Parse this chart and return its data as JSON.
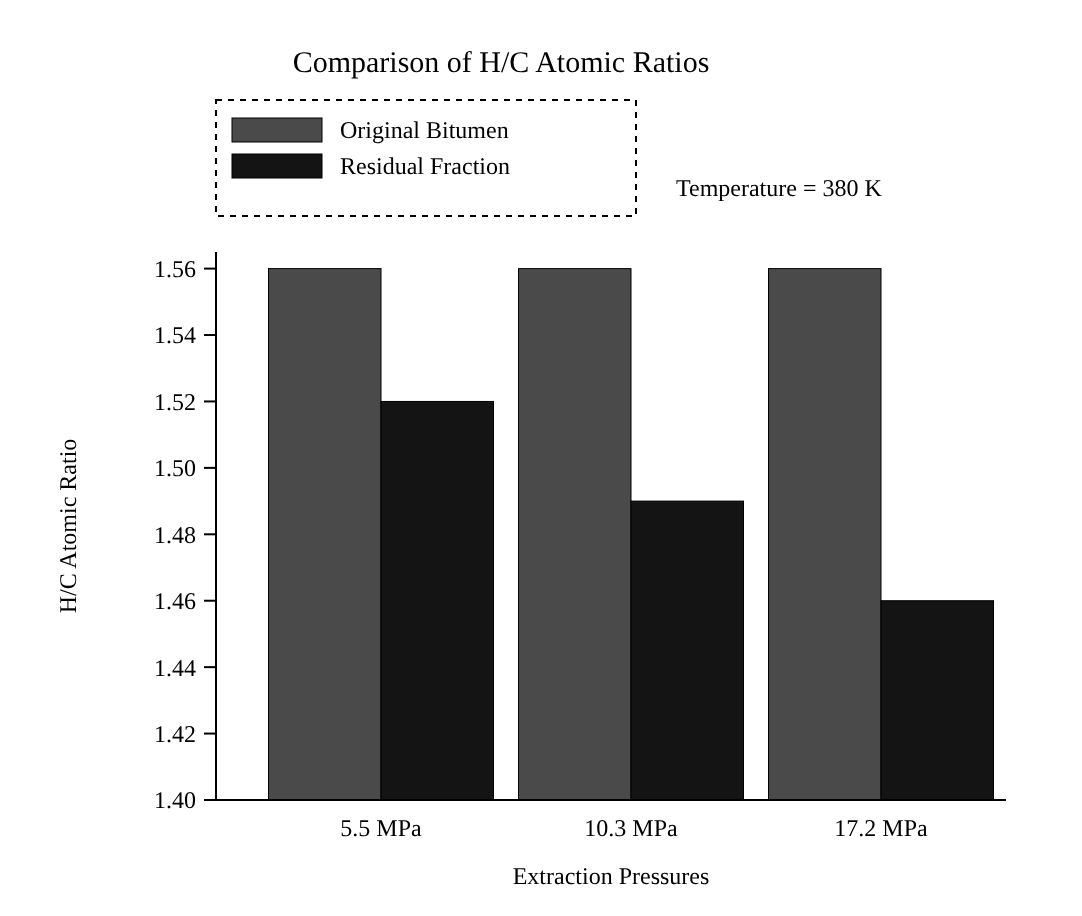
{
  "chart_data": {
    "type": "bar",
    "title": "Comparison of H/C Atomic Ratios",
    "xlabel": "Extraction Pressures",
    "ylabel": "H/C Atomic Ratio",
    "categories": [
      "5.5 MPa",
      "10.3 MPa",
      "17.2 MPa"
    ],
    "series": [
      {
        "name": "Original Bitumen",
        "color": "#4a4a4a",
        "values": [
          1.56,
          1.56,
          1.56
        ]
      },
      {
        "name": "Residual Fraction",
        "color": "#141414",
        "values": [
          1.52,
          1.49,
          1.46
        ]
      }
    ],
    "ylim": [
      1.4,
      1.565
    ],
    "yticks": [
      {
        "value": 1.4,
        "label": "1.40"
      },
      1.42,
      1.44,
      1.46,
      1.48,
      {
        "value": 1.5,
        "label": "1.50"
      },
      1.52,
      1.54,
      1.56
    ],
    "annotations": [
      "Temperature = 380 K"
    ],
    "legend": "top left"
  }
}
